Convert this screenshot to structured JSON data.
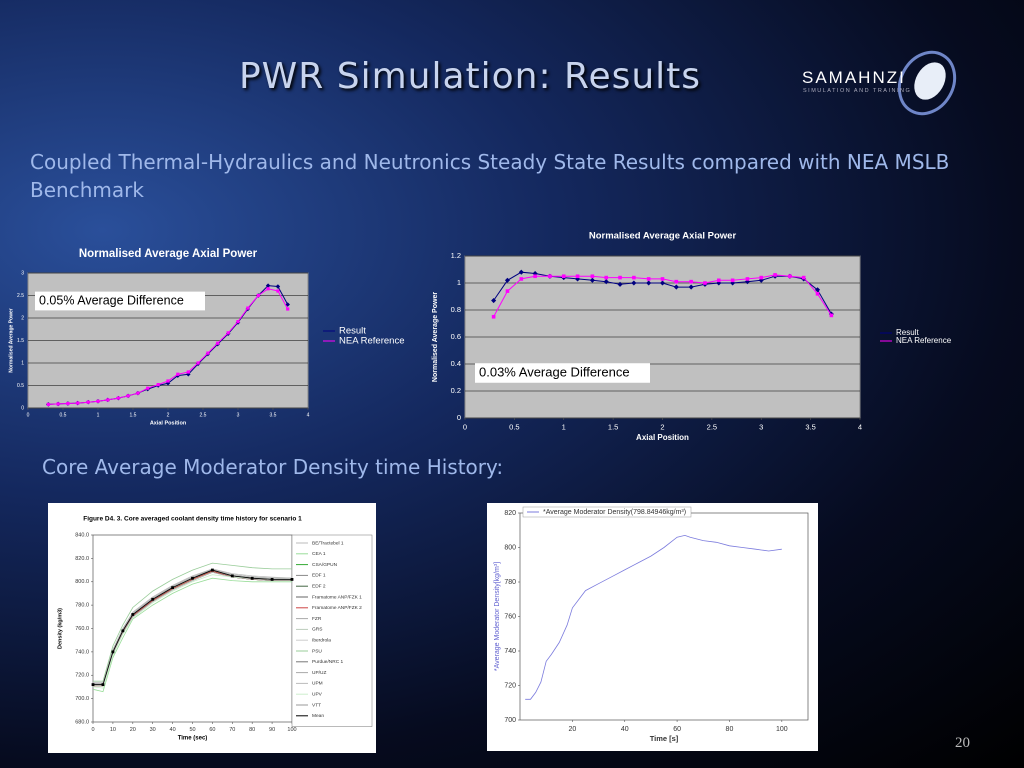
{
  "slide": {
    "title": "PWR Simulation: Results",
    "logo": {
      "name": "SAMAHNZI",
      "tagline": "SIMULATION AND TRAINING"
    },
    "subtitle": "Coupled Thermal-Hydraulics and Neutronics Steady State Results compared with NEA MSLB Benchmark",
    "section": "Core Average Moderator Density time History:",
    "page_number": "20"
  },
  "chart_data": [
    {
      "type": "line",
      "title": "Normalised Average Axial Power",
      "x_label": "Axial Position",
      "y_label": "Normalised Average Power",
      "annotation": "0.05% Average Difference",
      "x": [
        0.29,
        0.43,
        0.57,
        0.71,
        0.86,
        1.0,
        1.14,
        1.29,
        1.43,
        1.57,
        1.71,
        1.86,
        2.0,
        2.14,
        2.29,
        2.43,
        2.57,
        2.71,
        2.86,
        3.0,
        3.14,
        3.29,
        3.43,
        3.57,
        3.71
      ],
      "series": [
        {
          "name": "Result",
          "color": "#000080",
          "values": [
            0.08,
            0.09,
            0.1,
            0.11,
            0.13,
            0.15,
            0.18,
            0.22,
            0.27,
            0.33,
            0.42,
            0.5,
            0.55,
            0.72,
            0.75,
            0.98,
            1.2,
            1.42,
            1.65,
            1.9,
            2.2,
            2.5,
            2.72,
            2.7,
            2.3
          ]
        },
        {
          "name": "NEA Reference",
          "color": "#ff00ff",
          "values": [
            0.08,
            0.09,
            0.1,
            0.11,
            0.13,
            0.15,
            0.18,
            0.22,
            0.27,
            0.33,
            0.44,
            0.52,
            0.6,
            0.75,
            0.8,
            1.0,
            1.22,
            1.44,
            1.67,
            1.92,
            2.22,
            2.5,
            2.65,
            2.6,
            2.2
          ]
        }
      ],
      "xlim": [
        0,
        4
      ],
      "xticks": [
        0,
        0.5,
        1,
        1.5,
        2,
        2.5,
        3,
        3.5,
        4
      ],
      "ylim": [
        0,
        3
      ],
      "yticks": [
        0,
        0.5,
        1,
        1.5,
        2,
        2.5,
        3
      ],
      "grid": true,
      "plot_background": "#c0c0c0",
      "markers": true,
      "legend": "right"
    },
    {
      "type": "line",
      "title": "Normalised Average Axial Power",
      "x_label": "Axial Position",
      "y_label": "Normalised Average Power",
      "annotation": "0.03% Average Difference",
      "x": [
        0.29,
        0.43,
        0.57,
        0.71,
        0.86,
        1.0,
        1.14,
        1.29,
        1.43,
        1.57,
        1.71,
        1.86,
        2.0,
        2.14,
        2.29,
        2.43,
        2.57,
        2.71,
        2.86,
        3.0,
        3.14,
        3.29,
        3.43,
        3.57,
        3.71
      ],
      "series": [
        {
          "name": "Result",
          "color": "#000080",
          "values": [
            0.87,
            1.02,
            1.08,
            1.07,
            1.05,
            1.04,
            1.03,
            1.02,
            1.01,
            0.99,
            1.0,
            1.0,
            1.0,
            0.97,
            0.97,
            0.99,
            1.0,
            1.0,
            1.01,
            1.02,
            1.05,
            1.05,
            1.03,
            0.95,
            0.77
          ]
        },
        {
          "name": "NEA Reference",
          "color": "#ff00ff",
          "values": [
            0.75,
            0.94,
            1.03,
            1.05,
            1.05,
            1.05,
            1.05,
            1.05,
            1.04,
            1.04,
            1.04,
            1.03,
            1.03,
            1.01,
            1.01,
            1.0,
            1.02,
            1.02,
            1.03,
            1.04,
            1.06,
            1.05,
            1.04,
            0.92,
            0.76
          ]
        }
      ],
      "xlim": [
        0,
        4
      ],
      "xticks": [
        0,
        0.5,
        1,
        1.5,
        2,
        2.5,
        3,
        3.5,
        4
      ],
      "ylim": [
        0,
        1.2
      ],
      "yticks": [
        0,
        0.2,
        0.4,
        0.6,
        0.8,
        1,
        1.2
      ],
      "grid": true,
      "plot_background": "#c0c0c0",
      "markers": true,
      "legend": "right"
    },
    {
      "type": "line",
      "title": "Figure D4. 3. Core averaged coolant density time history for scenario 1",
      "x_label": "Time (sec)",
      "y_label": "Density (kg/m3)",
      "x": [
        0,
        5,
        10,
        15,
        20,
        30,
        40,
        50,
        60,
        70,
        80,
        90,
        100
      ],
      "series": [
        {
          "name": "BE/Tractebel 1",
          "color": "#bbbbbb",
          "values": [
            714,
            714,
            742,
            760,
            774,
            787,
            797,
            805,
            811,
            807,
            805,
            804,
            803
          ]
        },
        {
          "name": "CEA 1",
          "color": "#99dd99",
          "values": [
            708,
            706,
            735,
            752,
            768,
            780,
            790,
            798,
            803,
            801,
            800,
            800,
            800
          ]
        },
        {
          "name": "CSA/GPUN",
          "color": "#33aa33",
          "values": [
            711,
            711,
            739,
            757,
            771,
            784,
            794,
            802,
            809,
            804,
            802,
            801,
            801
          ]
        },
        {
          "name": "EDF 1",
          "color": "#888888",
          "values": [
            713,
            713,
            741,
            759,
            773,
            786,
            796,
            804,
            810,
            806,
            804,
            803,
            803
          ]
        },
        {
          "name": "EDF 2",
          "color": "#446644",
          "values": [
            712,
            712,
            740,
            757,
            771,
            784,
            795,
            803,
            809,
            804,
            802,
            801,
            801
          ]
        },
        {
          "name": "Framatome ANP/FZK 1",
          "color": "#666666",
          "values": [
            712,
            712,
            741,
            758,
            772,
            785,
            796,
            804,
            810,
            805,
            803,
            802,
            802
          ]
        },
        {
          "name": "Framatome ANP/FZK 2",
          "color": "#cc4444",
          "values": [
            711,
            711,
            739,
            757,
            771,
            784,
            794,
            802,
            809,
            804,
            802,
            801,
            801
          ]
        },
        {
          "name": "FZR",
          "color": "#aaaaaa",
          "values": [
            713,
            713,
            741,
            759,
            773,
            786,
            796,
            804,
            811,
            806,
            804,
            803,
            802
          ]
        },
        {
          "name": "GRS",
          "color": "#bbccbb",
          "values": [
            712,
            712,
            740,
            758,
            772,
            785,
            795,
            803,
            810,
            806,
            804,
            803,
            803
          ]
        },
        {
          "name": "Iberdrola",
          "color": "#cccccc",
          "values": [
            712,
            712,
            740,
            758,
            772,
            785,
            795,
            803,
            810,
            805,
            803,
            802,
            802
          ]
        },
        {
          "name": "PSU",
          "color": "#99cc99",
          "values": [
            715,
            715,
            745,
            763,
            778,
            792,
            802,
            810,
            816,
            814,
            812,
            811,
            811
          ]
        },
        {
          "name": "Purdue/NRC 1",
          "color": "#777777",
          "values": [
            712,
            712,
            740,
            758,
            772,
            785,
            795,
            803,
            810,
            805,
            803,
            802,
            802
          ]
        },
        {
          "name": "UP/UZ",
          "color": "#aaaaaa",
          "values": [
            711,
            711,
            738,
            756,
            770,
            783,
            793,
            801,
            808,
            804,
            802,
            801,
            801
          ]
        },
        {
          "name": "UPM",
          "color": "#bbbbbb",
          "values": [
            713,
            713,
            741,
            759,
            773,
            786,
            796,
            804,
            811,
            806,
            804,
            803,
            803
          ]
        },
        {
          "name": "UPV",
          "color": "#cceecc",
          "values": [
            710,
            709,
            737,
            755,
            769,
            782,
            792,
            800,
            806,
            804,
            803,
            802,
            802
          ]
        },
        {
          "name": "VTT",
          "color": "#999999",
          "values": [
            712,
            712,
            740,
            758,
            772,
            785,
            795,
            803,
            810,
            805,
            803,
            802,
            802
          ]
        },
        {
          "name": "Mean",
          "color": "#000000",
          "marker": true,
          "values": [
            712,
            712,
            740,
            758,
            772,
            785,
            795,
            803,
            810,
            805,
            803,
            802,
            802
          ]
        }
      ],
      "xlim": [
        0,
        100
      ],
      "xticks": [
        0,
        10,
        20,
        30,
        40,
        50,
        60,
        70,
        80,
        90,
        100
      ],
      "ylim": [
        680,
        840
      ],
      "yticks": [
        {
          "value": 680,
          "label": "680.0"
        },
        {
          "value": 700,
          "label": "700.0"
        },
        {
          "value": 720,
          "label": "720.0"
        },
        {
          "value": 740,
          "label": "740.0"
        },
        {
          "value": 760,
          "label": "760.0"
        },
        {
          "value": 780,
          "label": "780.0"
        },
        {
          "value": 800,
          "label": "800.0"
        },
        {
          "value": 820,
          "label": "820.0"
        },
        {
          "value": 840,
          "label": "840.0"
        }
      ],
      "grid": false,
      "legend": "right"
    },
    {
      "type": "line",
      "x_label": "Time [s]",
      "y_label": "*Average Moderator Density[kg/m³]",
      "x": [
        2,
        4,
        6,
        8,
        10,
        12,
        15,
        18,
        20,
        25,
        30,
        35,
        40,
        45,
        50,
        55,
        60,
        63,
        65,
        70,
        75,
        80,
        85,
        90,
        95,
        100
      ],
      "series": [
        {
          "name": "*Average Moderator Density(798.84946kg/m³)",
          "color": "#7b7bdd",
          "values": [
            712,
            712,
            716,
            722,
            734,
            738,
            745,
            755,
            765,
            775,
            779,
            783,
            787,
            791,
            795,
            800,
            806,
            807,
            806,
            804,
            803,
            801,
            800,
            799,
            798,
            799
          ]
        }
      ],
      "xlim": [
        0,
        110
      ],
      "xticks": [
        20,
        40,
        60,
        80,
        100
      ],
      "ylim": [
        700,
        820
      ],
      "yticks": [
        700,
        720,
        740,
        760,
        780,
        800,
        820
      ],
      "grid": false,
      "legend": "upper left"
    }
  ]
}
